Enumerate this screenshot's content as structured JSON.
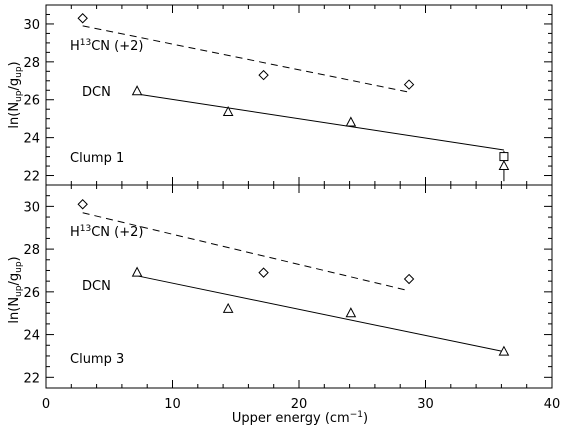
{
  "chart_data": {
    "type": "scatter",
    "xlabel": "Upper energy (cm",
    "xlabel_sup": "−1",
    "xlabel_end": ")",
    "ylabel": "ln(N",
    "ylabel_sub1": "up",
    "ylabel_mid": "/g",
    "ylabel_sub2": "up",
    "ylabel_end": ")",
    "xlim": [
      0,
      40
    ],
    "xticks": [
      0,
      10,
      20,
      30,
      40
    ],
    "grid": false,
    "panels": [
      {
        "label": "Clump 1",
        "ylim": [
          21.5,
          31
        ],
        "yticks": [
          22,
          24,
          26,
          28,
          30
        ],
        "series": [
          {
            "name": "H13CN (+2)",
            "label_main": "H",
            "label_sup": "13",
            "label_rest": "CN (+2)",
            "marker": "diamond",
            "points": [
              {
                "x": 2.9,
                "y": 30.3
              },
              {
                "x": 17.2,
                "y": 27.3
              },
              {
                "x": 28.7,
                "y": 26.8
              }
            ],
            "fit": {
              "x": [
                2.9,
                28.7
              ],
              "y": [
                29.9,
                26.4
              ],
              "style": "dashed"
            }
          },
          {
            "name": "DCN",
            "label_main": "DCN",
            "marker": "triangle",
            "points": [
              {
                "x": 7.2,
                "y": 26.45
              },
              {
                "x": 14.4,
                "y": 25.35
              },
              {
                "x": 24.1,
                "y": 24.8
              },
              {
                "x": 36.2,
                "y": 22.5,
                "error": [
                  21.7,
                  23.3
                ]
              }
            ],
            "fit": {
              "x": [
                7.2,
                36.2
              ],
              "y": [
                26.3,
                23.35
              ],
              "style": "solid"
            }
          },
          {
            "name": "",
            "marker": "square",
            "points": [
              {
                "x": 36.2,
                "y": 23.0
              }
            ]
          }
        ]
      },
      {
        "label": "Clump 3",
        "ylim": [
          21.5,
          31
        ],
        "yticks": [
          22,
          24,
          26,
          28,
          30
        ],
        "series": [
          {
            "name": "H13CN (+2)",
            "label_main": "H",
            "label_sup": "13",
            "label_rest": "CN (+2)",
            "marker": "diamond",
            "points": [
              {
                "x": 2.9,
                "y": 30.1
              },
              {
                "x": 17.2,
                "y": 26.9
              },
              {
                "x": 28.7,
                "y": 26.6
              }
            ],
            "fit": {
              "x": [
                2.9,
                28.7
              ],
              "y": [
                29.7,
                26.05
              ],
              "style": "dashed"
            }
          },
          {
            "name": "DCN",
            "label_main": "DCN",
            "marker": "triangle",
            "points": [
              {
                "x": 7.2,
                "y": 26.9
              },
              {
                "x": 14.4,
                "y": 25.2
              },
              {
                "x": 24.1,
                "y": 25.0
              },
              {
                "x": 36.2,
                "y": 23.2
              }
            ],
            "fit": {
              "x": [
                7.2,
                36.2
              ],
              "y": [
                26.75,
                23.2
              ],
              "style": "solid"
            }
          }
        ]
      }
    ]
  }
}
